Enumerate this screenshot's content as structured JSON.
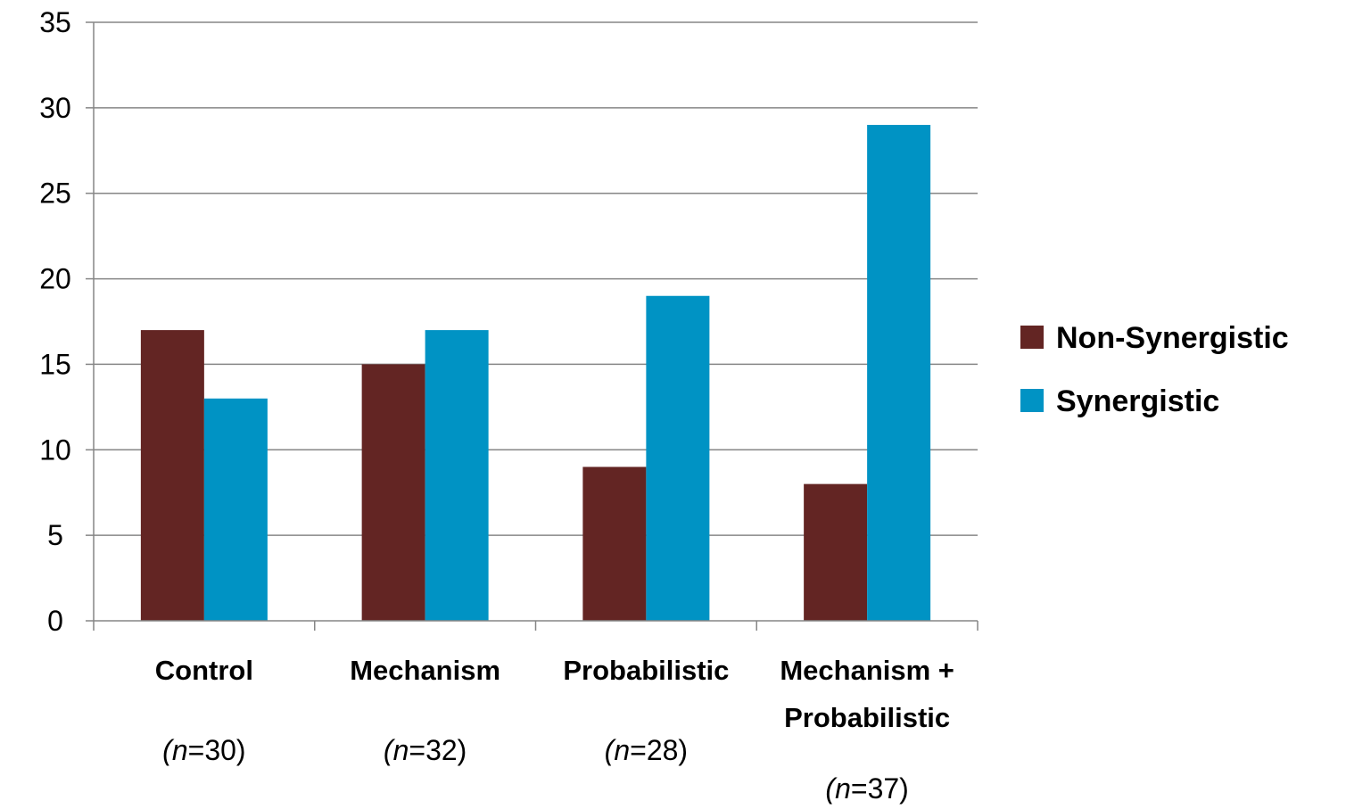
{
  "chart_data": {
    "type": "bar",
    "title": "",
    "xlabel": "",
    "ylabel": "",
    "ylim": [
      0,
      35
    ],
    "yticks": [
      0,
      5,
      10,
      15,
      20,
      25,
      30,
      35
    ],
    "grid": true,
    "legend_position": "right",
    "categories": [
      {
        "lines": [
          "Control"
        ],
        "n_prefix": "(",
        "n_var": "n",
        "n_value": "=30",
        "n_suffix": ")"
      },
      {
        "lines": [
          "Mechanism"
        ],
        "n_prefix": "(",
        "n_var": "n",
        "n_value": "=32",
        "n_suffix": ")"
      },
      {
        "lines": [
          "Probabilistic"
        ],
        "n_prefix": "(",
        "n_var": "n",
        "n_value": "=28",
        "n_suffix": ")"
      },
      {
        "lines": [
          "Mechanism +",
          "Probabilistic"
        ],
        "n_prefix": "(",
        "n_var": "n",
        "n_value": "=37",
        "n_suffix": ")"
      }
    ],
    "series": [
      {
        "name": "Non-Synergistic",
        "color": "#632523",
        "values": [
          17,
          15,
          9,
          8
        ]
      },
      {
        "name": "Synergistic",
        "color": "#0093C4",
        "values": [
          13,
          17,
          19,
          29
        ]
      }
    ]
  }
}
